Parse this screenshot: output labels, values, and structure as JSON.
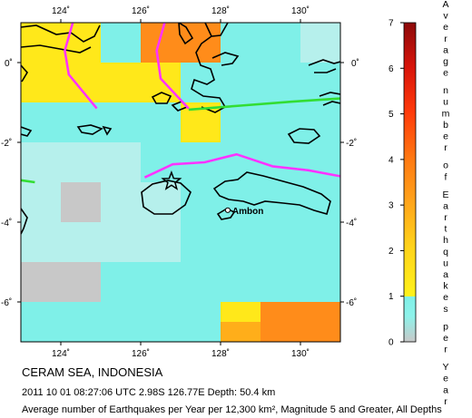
{
  "map": {
    "title": "CERAM SEA, INDONESIA",
    "event_line": "2011 10 01 08:27:06 UTC 2.98S 126.77E Depth: 50.4 km",
    "description": "Average number of Earthquakes per Year per 12,300 km², Magnitude 5 and Greater, All Depths",
    "city_label": "Ambon",
    "lon_ticks": [
      "124˚",
      "126˚",
      "128˚",
      "130˚"
    ],
    "lat_ticks_left": [
      "0˚",
      "-2˚",
      "-4˚",
      "-6˚"
    ],
    "lat_ticks_right": [
      "0˚",
      "-2˚",
      "-4˚",
      "-6˚"
    ],
    "epicenter": {
      "lon": 126.77,
      "lat": -2.98
    },
    "city": {
      "lon": 128.18,
      "lat": -3.7
    },
    "extent": {
      "lon_min": 123.0,
      "lon_max": 131.0,
      "lat_min": -7.0,
      "lat_max": 1.0
    }
  },
  "colorbar": {
    "title": "Average number of Earthquakes per Year",
    "ticks": [
      "0",
      "1",
      "2",
      "3",
      "4",
      "5",
      "6",
      "7"
    ],
    "range": [
      0,
      7
    ],
    "colors": {
      "low": "#c8c8c8",
      "cyan": "#7ff0e8",
      "yellow": "#ffe81a",
      "orange": "#ff8c1a",
      "red": "#e81a0a",
      "darkred": "#8c0a0a"
    }
  },
  "grid": {
    "lon_edges": [
      123,
      124,
      125,
      126,
      127,
      128,
      129,
      130,
      131
    ],
    "lat_edges": [
      1,
      0,
      -1,
      -2,
      -3,
      -4,
      -5,
      -6,
      -7
    ],
    "rows": [
      [
        1.5,
        1.5,
        0.5,
        3.2,
        3.2,
        0.5,
        0.6,
        0.2
      ],
      [
        1.5,
        1.5,
        1.5,
        1.5,
        0.6,
        0.5,
        0.5,
        0.5
      ],
      [
        0.6,
        0.6,
        0.6,
        0.5,
        1.6,
        0.6,
        0.6,
        0.6
      ],
      [
        0.2,
        0.3,
        0.2,
        0.6,
        0.6,
        0.6,
        0.5,
        0.5
      ],
      [
        0.3,
        0.05,
        0.2,
        0.3,
        0.6,
        0.6,
        0.6,
        0.6
      ],
      [
        0.2,
        0.2,
        0.2,
        0.25,
        0.5,
        0.5,
        0.5,
        0.5
      ],
      [
        0.1,
        0.1,
        0.4,
        0.4,
        0.4,
        0.4,
        0.4,
        0.4
      ],
      [
        0.6,
        0.6,
        0.6,
        0.6,
        0.6,
        1.5,
        3.0,
        3.0
      ]
    ],
    "bottom_strip": [
      0.6,
      0.6,
      0.6,
      0.6,
      0.6,
      2.0,
      3.4,
      3.4
    ]
  },
  "plate_boundaries": [
    {
      "color": "#ff33ff",
      "points": [
        [
          124.3,
          1.0
        ],
        [
          124.1,
          0.3
        ],
        [
          124.2,
          -0.3
        ],
        [
          124.9,
          -1.15
        ]
      ]
    },
    {
      "color": "#ff33ff",
      "points": [
        [
          126.6,
          1.0
        ],
        [
          126.4,
          0.3
        ],
        [
          126.5,
          -0.4
        ],
        [
          127.2,
          -1.15
        ]
      ]
    },
    {
      "color": "#ff33ff",
      "points": [
        [
          126.1,
          -2.88
        ],
        [
          126.8,
          -2.55
        ],
        [
          127.6,
          -2.5
        ],
        [
          128.4,
          -2.3
        ],
        [
          129.3,
          -2.6
        ],
        [
          130.2,
          -2.7
        ],
        [
          131.0,
          -2.85
        ]
      ]
    },
    {
      "color": "#33dd33",
      "points": [
        [
          127.2,
          -1.18
        ],
        [
          128.5,
          -1.08
        ],
        [
          129.8,
          -0.98
        ],
        [
          131.0,
          -0.9
        ]
      ]
    },
    {
      "color": "#33dd33",
      "points": [
        [
          123.0,
          -2.95
        ],
        [
          123.35,
          -3.0
        ]
      ]
    }
  ]
}
